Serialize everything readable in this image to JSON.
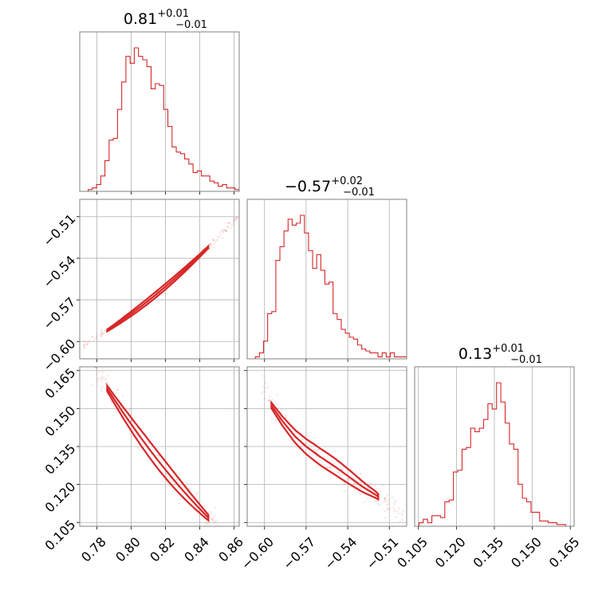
{
  "figure": {
    "type": "corner-plot",
    "accent_color": "#d62728"
  },
  "chart_data": {
    "type": "corner",
    "parameters": [
      {
        "title_value": "0.81",
        "title_plus": "+0.01",
        "title_minus": "−0.01",
        "range": [
          0.77,
          0.863
        ],
        "ticks": [
          0.78,
          0.8,
          0.82,
          0.84,
          0.86
        ],
        "tick_labels": [
          "0.78",
          "0.80",
          "0.82",
          "0.84",
          "0.86"
        ],
        "histogram": [
          0,
          0,
          1,
          2,
          4,
          9,
          18,
          30,
          31,
          48,
          64,
          79,
          75,
          84,
          79,
          77,
          73,
          60,
          63,
          62,
          48,
          38,
          26,
          23,
          22,
          19,
          16,
          11,
          12,
          9,
          9,
          6,
          5,
          3,
          4,
          2,
          2,
          1
        ]
      },
      {
        "title_value": "−0.57",
        "title_plus": "+0.02",
        "title_minus": "−0.01",
        "range": [
          -0.6125,
          -0.4975
        ],
        "ticks": [
          -0.6,
          -0.57,
          -0.54,
          -0.51
        ],
        "tick_labels": [
          "−0.60",
          "−0.57",
          "−0.54",
          "−0.51"
        ],
        "histogram": [
          0,
          0,
          1,
          3,
          9,
          23,
          24,
          50,
          57,
          65,
          71,
          68,
          69,
          73,
          64,
          55,
          46,
          53,
          45,
          38,
          39,
          23,
          20,
          15,
          13,
          11,
          10,
          7,
          5,
          4,
          3,
          3,
          1,
          3,
          1,
          3,
          1,
          1,
          1
        ]
      },
      {
        "title_value": "0.13",
        "title_plus": "+0.01",
        "title_minus": "−0.01",
        "range": [
          0.1035,
          0.1665
        ],
        "ticks": [
          0.105,
          0.12,
          0.135,
          0.15,
          0.165
        ],
        "tick_labels": [
          "0.105",
          "0.120",
          "0.135",
          "0.150",
          "0.165"
        ],
        "histogram": [
          0,
          2,
          4,
          2,
          6,
          6,
          5,
          14,
          15,
          31,
          32,
          44,
          45,
          56,
          54,
          56,
          61,
          70,
          67,
          82,
          71,
          59,
          47,
          44,
          24,
          16,
          14,
          8,
          8,
          3,
          3,
          2,
          2,
          1,
          1,
          0,
          0
        ]
      }
    ],
    "scatter_pairs": [
      {
        "x_param": 0,
        "y_param": 1,
        "relation": "y = -0.58 + 0.91*(x-0.80) + 3.5*(x-0.80)^2",
        "x_samples": [
          0.772,
          0.862
        ],
        "contour_halfwidth": 0.0025
      },
      {
        "x_param": 0,
        "y_param": 2,
        "relation": "y = 0.1345 - 0.9*(x-0.81) + 3.2*(x-0.81)^2",
        "x_samples": [
          0.776,
          0.862
        ],
        "contour_halfwidth": 0.004
      },
      {
        "x_param": 1,
        "y_param": 2,
        "relation": "curve from points",
        "x_samples": [
          -0.602,
          -0.5
        ],
        "curve_points": [
          [
            -0.603,
            0.162
          ],
          [
            -0.596,
            0.152
          ],
          [
            -0.587,
            0.145
          ],
          [
            -0.578,
            0.139
          ],
          [
            -0.57,
            0.135
          ],
          [
            -0.56,
            0.131
          ],
          [
            -0.549,
            0.127
          ],
          [
            -0.539,
            0.123
          ],
          [
            -0.529,
            0.119
          ],
          [
            -0.52,
            0.116
          ],
          [
            -0.51,
            0.112
          ],
          [
            -0.5,
            0.108
          ]
        ],
        "contour_halfwidth": 0.004
      }
    ]
  }
}
